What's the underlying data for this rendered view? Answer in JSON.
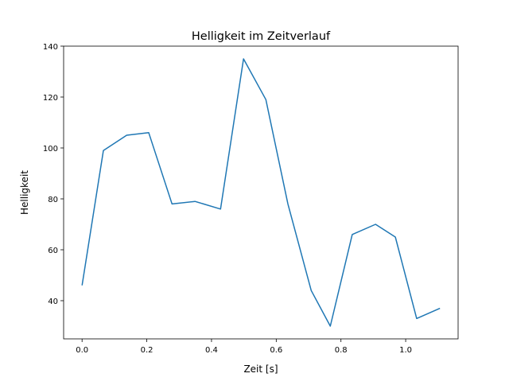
{
  "chart_data": {
    "type": "line",
    "title": "Helligkeit im Zeitverlauf",
    "xlabel": "Zeit [s]",
    "ylabel": "Helligkeit",
    "xlim": [
      -0.057,
      1.162
    ],
    "ylim": [
      25,
      140
    ],
    "xticks": [
      0.0,
      0.2,
      0.4,
      0.6,
      0.8,
      1.0
    ],
    "xtick_labels": [
      "0.0",
      "0.2",
      "0.4",
      "0.6",
      "0.8",
      "1.0"
    ],
    "yticks": [
      40,
      60,
      80,
      100,
      120,
      140
    ],
    "ytick_labels": [
      "40",
      "60",
      "80",
      "100",
      "120",
      "140"
    ],
    "grid": false,
    "series": [
      {
        "name": "Helligkeit",
        "color": "#1f77b4",
        "x": [
          0.0,
          0.066,
          0.138,
          0.206,
          0.278,
          0.349,
          0.428,
          0.499,
          0.568,
          0.636,
          0.708,
          0.767,
          0.835,
          0.907,
          0.968,
          1.034,
          1.106
        ],
        "y": [
          46,
          99,
          105,
          106,
          78,
          79,
          76,
          135,
          119,
          78,
          44,
          30,
          66,
          70,
          65,
          33,
          37
        ]
      }
    ]
  }
}
